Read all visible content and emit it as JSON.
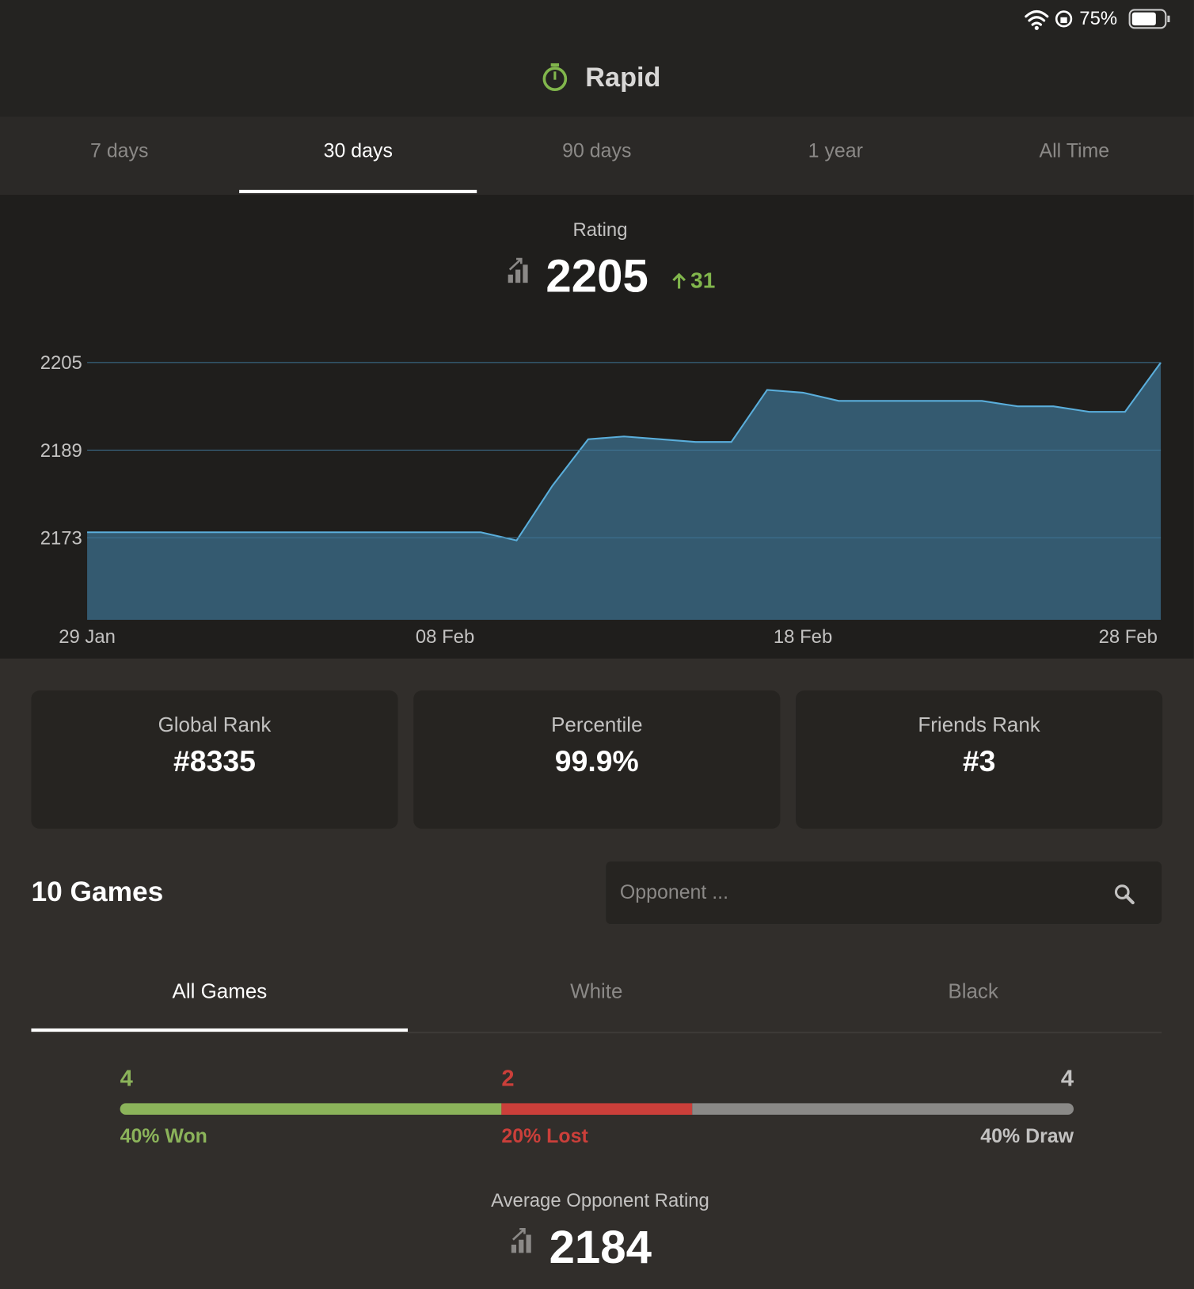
{
  "status_bar": {
    "battery": "75%"
  },
  "header": {
    "title": "Rapid"
  },
  "period_tabs": {
    "items": [
      "7 days",
      "30 days",
      "90 days",
      "1 year",
      "All Time"
    ],
    "selected": 1
  },
  "rating": {
    "label": "Rating",
    "value": 2205,
    "change": 31
  },
  "chart_data": {
    "type": "area",
    "categories": [
      "29 Jan",
      null,
      null,
      null,
      null,
      null,
      null,
      null,
      null,
      null,
      "08 Feb",
      null,
      null,
      null,
      null,
      null,
      null,
      null,
      null,
      null,
      "18 Feb",
      null,
      null,
      null,
      null,
      null,
      null,
      null,
      null,
      null,
      "28 Feb"
    ],
    "values": [
      2174,
      2174,
      2174,
      2174,
      2174,
      2174,
      2174,
      2174,
      2174,
      2174,
      2174,
      2174,
      2172.5,
      2182.5,
      2191,
      2191.5,
      2191,
      2190.5,
      2190.5,
      2200,
      2199.5,
      2198,
      2198,
      2198,
      2198,
      2198,
      2197,
      2197,
      2196,
      2196,
      2205
    ],
    "color": "#345a70",
    "line_color": "#5aaedb",
    "ylim": [
      2158,
      2205
    ],
    "yticks": [
      2173,
      2189,
      2205
    ],
    "grid": true
  },
  "stats": [
    {
      "label": "Global Rank",
      "value": "#8335"
    },
    {
      "label": "Percentile",
      "value": "99.9%"
    },
    {
      "label": "Friends Rank",
      "value": "#3"
    }
  ],
  "games": {
    "title": "10 Games",
    "search_placeholder": "Opponent ...",
    "tabs": [
      "All Games",
      "White",
      "Black"
    ],
    "selected": 0
  },
  "results": [
    {
      "count": 4,
      "label": "40% Won",
      "color": "#8bb35a"
    },
    {
      "count": 2,
      "label": "20% Lost",
      "color": "#cb3f3a"
    },
    {
      "count": 4,
      "label": "40% Draw",
      "color": "#8a8987"
    }
  ],
  "average_opponent": {
    "label": "Average Opponent Rating",
    "value": 2184
  }
}
